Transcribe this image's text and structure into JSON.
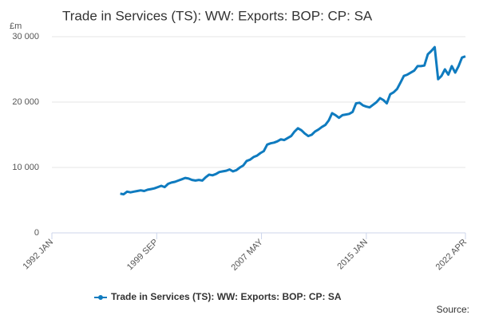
{
  "chart_data": {
    "type": "line",
    "title": "Trade in Services (TS): WW: Exports: BOP: CP: SA",
    "y_unit": "£m",
    "source": "Source:",
    "xlim": [
      "1992 JAN",
      "2022 APR"
    ],
    "xticks": [
      "1992 JAN",
      "1999 SEP",
      "2007 MAY",
      "2015 JAN",
      "2022 APR"
    ],
    "ylim": [
      0,
      30000
    ],
    "yticks": [
      0,
      {
        "value": 10000,
        "label": "10 000"
      },
      {
        "value": 20000,
        "label": "20 000"
      },
      {
        "value": 30000,
        "label": "30 000"
      }
    ],
    "grid": true,
    "x": [
      "1997 JAN",
      "1997 APR",
      "1997 JUL",
      "1997 OCT",
      "1998 JAN",
      "1998 APR",
      "1998 JUL",
      "1998 OCT",
      "1999 JAN",
      "1999 APR",
      "1999 JUL",
      "1999 OCT",
      "2000 JAN",
      "2000 APR",
      "2000 JUL",
      "2000 OCT",
      "2001 JAN",
      "2001 APR",
      "2001 JUL",
      "2001 OCT",
      "2002 JAN",
      "2002 APR",
      "2002 JUL",
      "2002 OCT",
      "2003 JAN",
      "2003 APR",
      "2003 JUL",
      "2003 OCT",
      "2004 JAN",
      "2004 APR",
      "2004 JUL",
      "2004 OCT",
      "2005 JAN",
      "2005 APR",
      "2005 JUL",
      "2005 OCT",
      "2006 JAN",
      "2006 APR",
      "2006 JUL",
      "2006 OCT",
      "2007 JAN",
      "2007 APR",
      "2007 JUL",
      "2007 OCT",
      "2008 JAN",
      "2008 APR",
      "2008 JUL",
      "2008 OCT",
      "2009 JAN",
      "2009 APR",
      "2009 JUL",
      "2009 OCT",
      "2010 JAN",
      "2010 APR",
      "2010 JUL",
      "2010 OCT",
      "2011 JAN",
      "2011 APR",
      "2011 JUL",
      "2011 OCT",
      "2012 JAN",
      "2012 APR",
      "2012 JUL",
      "2012 OCT",
      "2013 JAN",
      "2013 APR",
      "2013 JUL",
      "2013 OCT",
      "2014 JAN",
      "2014 APR",
      "2014 JUL",
      "2014 OCT",
      "2015 JAN",
      "2015 APR",
      "2015 JUL",
      "2015 OCT",
      "2016 JAN",
      "2016 APR",
      "2016 JUL",
      "2016 OCT",
      "2017 JAN",
      "2017 APR",
      "2017 JUL",
      "2017 OCT",
      "2018 JAN",
      "2018 APR",
      "2018 JUL",
      "2018 OCT",
      "2019 JAN",
      "2019 APR",
      "2019 JUL",
      "2019 OCT",
      "2020 JAN",
      "2020 APR",
      "2020 JUL",
      "2020 OCT",
      "2021 JAN",
      "2021 APR",
      "2021 JUL",
      "2021 OCT",
      "2022 JAN",
      "2022 APR"
    ],
    "series": [
      {
        "name": "Trade in Services (TS): WW: Exports: BOP: CP: SA",
        "color": "#0f7bbf",
        "values": [
          6000,
          5900,
          6300,
          6200,
          6300,
          6400,
          6500,
          6400,
          6600,
          6700,
          6800,
          7000,
          7200,
          7000,
          7500,
          7700,
          7800,
          8000,
          8200,
          8400,
          8300,
          8100,
          8000,
          8100,
          8000,
          8500,
          8900,
          8800,
          9000,
          9300,
          9400,
          9500,
          9700,
          9400,
          9600,
          10000,
          10300,
          11000,
          11200,
          11600,
          11800,
          12200,
          12500,
          13500,
          13700,
          13800,
          14000,
          14300,
          14200,
          14500,
          14800,
          15500,
          16000,
          15700,
          15200,
          14800,
          15000,
          15500,
          15800,
          16200,
          16500,
          17200,
          18300,
          18000,
          17600,
          18000,
          18100,
          18200,
          18500,
          19800,
          19900,
          19500,
          19300,
          19200,
          19600,
          20000,
          20600,
          20300,
          19800,
          21200,
          21500,
          22000,
          23000,
          24000,
          24200,
          24500,
          24800,
          25500,
          25500,
          25600,
          27300,
          27800,
          28400,
          23500,
          24000,
          25000,
          24200,
          25500,
          24500,
          25500,
          26800,
          27000
        ]
      }
    ]
  }
}
